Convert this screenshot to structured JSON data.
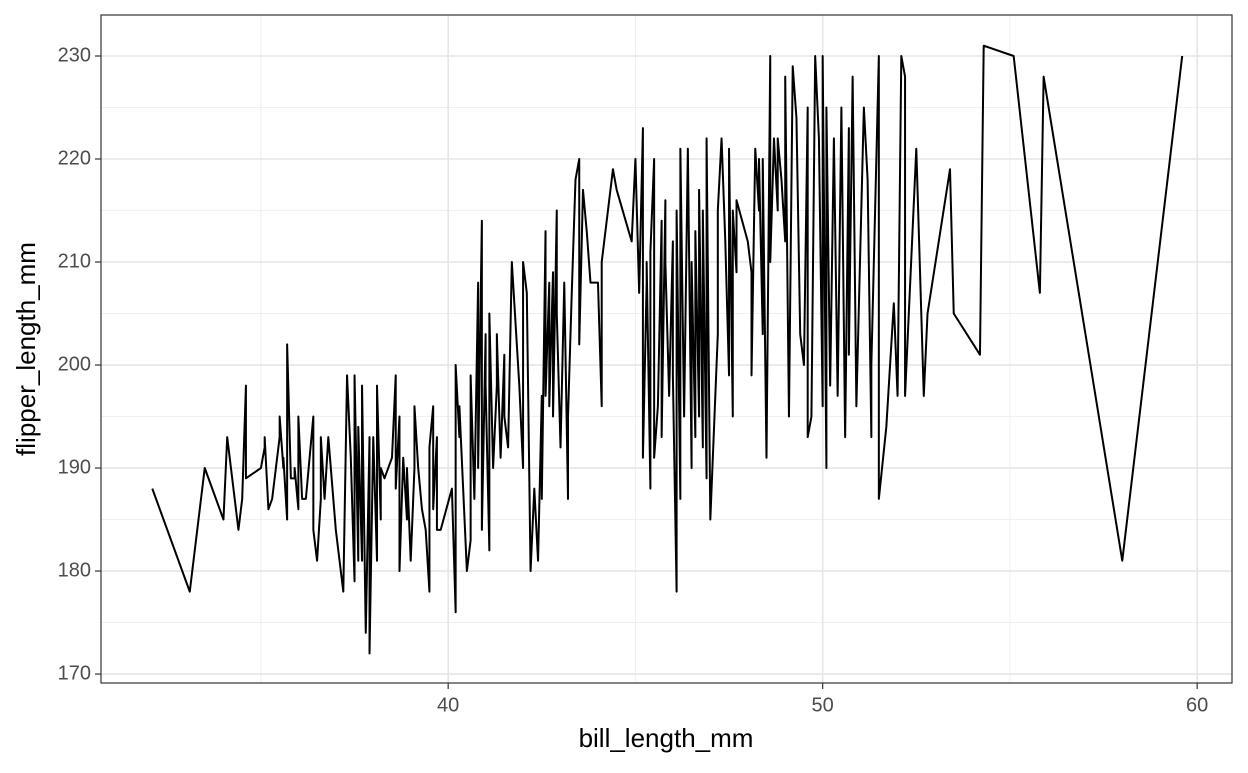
{
  "chart_data": {
    "type": "line",
    "xlabel": "bill_length_mm",
    "ylabel": "flipper_length_mm",
    "xlim": [
      30.73,
      60.93
    ],
    "ylim": [
      169.13,
      233.98
    ],
    "xticks": [
      40,
      50,
      60
    ],
    "yticks": [
      170,
      180,
      190,
      200,
      210,
      220,
      230
    ],
    "minor_xticks": [
      35,
      45,
      55
    ],
    "minor_yticks": [
      175,
      185,
      195,
      205,
      215,
      225
    ],
    "grid": true,
    "series": [
      {
        "color": "#000000",
        "x": [
          32.1,
          33.1,
          33.5,
          34.0,
          34.1,
          34.4,
          34.5,
          34.6,
          34.6,
          35.0,
          35.1,
          35.1,
          35.2,
          35.3,
          35.5,
          35.5,
          35.6,
          35.6,
          35.7,
          35.7,
          35.8,
          35.9,
          35.9,
          36.0,
          36.0,
          36.1,
          36.2,
          36.4,
          36.4,
          36.5,
          36.6,
          36.6,
          36.7,
          36.8,
          37.0,
          37.2,
          37.3,
          37.4,
          37.5,
          37.5,
          37.6,
          37.6,
          37.7,
          37.7,
          37.8,
          37.9,
          37.9,
          38.0,
          38.1,
          38.1,
          38.2,
          38.2,
          38.3,
          38.5,
          38.6,
          38.6,
          38.7,
          38.7,
          38.8,
          38.9,
          38.9,
          39.0,
          39.1,
          39.1,
          39.2,
          39.2,
          39.3,
          39.4,
          39.5,
          39.5,
          39.6,
          39.6,
          39.7,
          39.7,
          39.8,
          40.1,
          40.2,
          40.2,
          40.3,
          40.3,
          40.5,
          40.6,
          40.6,
          40.7,
          40.8,
          40.8,
          40.9,
          40.9,
          41.0,
          41.0,
          41.1,
          41.1,
          41.2,
          41.3,
          41.3,
          41.4,
          41.5,
          41.5,
          41.6,
          41.7,
          41.9,
          42.0,
          42.0,
          42.1,
          42.2,
          42.3,
          42.4,
          42.5,
          42.5,
          42.6,
          42.6,
          42.7,
          42.7,
          42.8,
          42.8,
          42.9,
          42.9,
          43.0,
          43.1,
          43.2,
          43.2,
          43.3,
          43.4,
          43.5,
          43.5,
          43.6,
          43.7,
          43.8,
          44.0,
          44.1,
          44.1,
          44.4,
          44.5,
          44.9,
          45.0,
          45.1,
          45.2,
          45.2,
          45.3,
          45.3,
          45.4,
          45.4,
          45.5,
          45.5,
          45.6,
          45.7,
          45.7,
          45.8,
          45.8,
          45.9,
          46.0,
          46.0,
          46.1,
          46.1,
          46.2,
          46.2,
          46.3,
          46.4,
          46.5,
          46.5,
          46.6,
          46.6,
          46.7,
          46.7,
          46.8,
          46.8,
          46.9,
          46.9,
          47.0,
          47.2,
          47.2,
          47.3,
          47.4,
          47.5,
          47.5,
          47.6,
          47.6,
          47.7,
          47.7,
          48.0,
          48.1,
          48.1,
          48.2,
          48.3,
          48.3,
          48.4,
          48.4,
          48.5,
          48.6,
          48.6,
          48.7,
          48.8,
          48.8,
          48.9,
          49.0,
          49.0,
          49.1,
          49.2,
          49.3,
          49.4,
          49.5,
          49.6,
          49.6,
          49.7,
          49.8,
          49.9,
          50.0,
          50.0,
          50.0,
          50.1,
          50.1,
          50.2,
          50.3,
          50.4,
          50.5,
          50.6,
          50.7,
          50.7,
          50.8,
          50.9,
          51.1,
          51.2,
          51.3,
          51.3,
          51.5,
          51.5,
          51.7,
          51.9,
          52.0,
          52.1,
          52.2,
          52.2,
          52.5,
          52.7,
          52.8,
          53.4,
          53.5,
          54.2,
          54.3,
          55.1,
          55.8,
          55.9,
          58.0,
          59.6
        ],
        "values": [
          188,
          178,
          190,
          185,
          193,
          184,
          187,
          198,
          189,
          190,
          192,
          193,
          186,
          187,
          193,
          195,
          190,
          191,
          185,
          202,
          189,
          189,
          190,
          186,
          195,
          187,
          187,
          195,
          184,
          181,
          187,
          193,
          187,
          193,
          184,
          178,
          199,
          191,
          179,
          199,
          181,
          194,
          181,
          198,
          174,
          193,
          172,
          193,
          181,
          198,
          185,
          190,
          189,
          191,
          199,
          188,
          195,
          180,
          191,
          185,
          190,
          181,
          190,
          196,
          190,
          190,
          186,
          184,
          178,
          192,
          196,
          186,
          193,
          184,
          184,
          188,
          176,
          200,
          193,
          196,
          180,
          183,
          199,
          187,
          208,
          190,
          214,
          184,
          203,
          198,
          182,
          205,
          190,
          198,
          203,
          191,
          201,
          195,
          192,
          210,
          198,
          190,
          210,
          207,
          180,
          188,
          181,
          197,
          187,
          213,
          197,
          208,
          196,
          209,
          195,
          215,
          205,
          192,
          208,
          187,
          195,
          207,
          218,
          220,
          202,
          217,
          213,
          208,
          208,
          196,
          210,
          219,
          217,
          212,
          220,
          207,
          223,
          191,
          208,
          210,
          188,
          211,
          220,
          191,
          196,
          214,
          193,
          216,
          210,
          197,
          212,
          199,
          178,
          215,
          187,
          221,
          195,
          221,
          190,
          210,
          193,
          213,
          195,
          217,
          192,
          215,
          189,
          222,
          185,
          203,
          215,
          222,
          212,
          199,
          221,
          195,
          215,
          209,
          216,
          212,
          209,
          199,
          221,
          215,
          220,
          203,
          220,
          191,
          230,
          210,
          222,
          215,
          222,
          218,
          212,
          228,
          195,
          229,
          224,
          203,
          200,
          225,
          193,
          195,
          230,
          222,
          196,
          219,
          230,
          190,
          225,
          198,
          222,
          197,
          225,
          193,
          223,
          201,
          228,
          196,
          225,
          218,
          193,
          200,
          230,
          187,
          194,
          206,
          197,
          230,
          228,
          197,
          221,
          197,
          205,
          219,
          205,
          201,
          231,
          230,
          207,
          228,
          181,
          230
        ]
      }
    ]
  }
}
